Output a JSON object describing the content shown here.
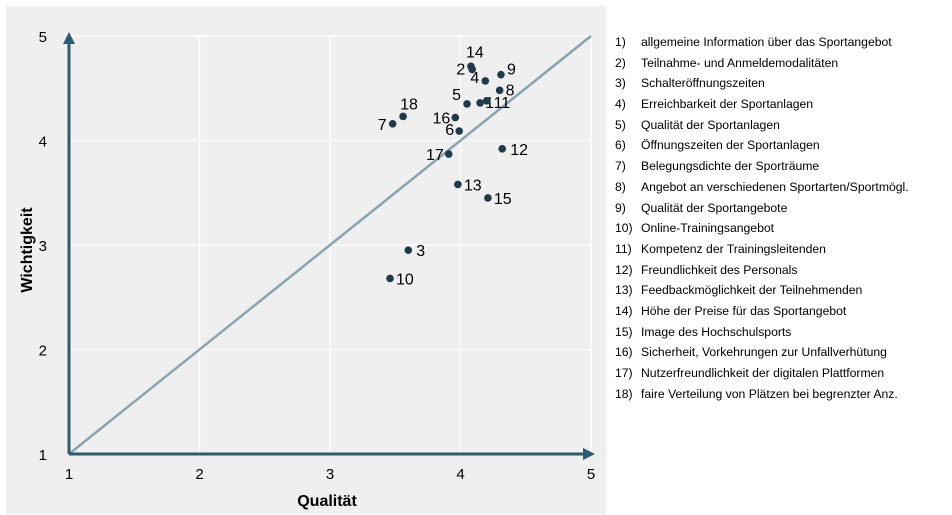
{
  "chart_data": {
    "type": "scatter",
    "xlabel": "Qualität",
    "ylabel": "Wichtigkeit",
    "xlim": [
      1,
      5
    ],
    "ylim": [
      1,
      5
    ],
    "xticks": [
      "1",
      "2",
      "3",
      "4",
      "5"
    ],
    "yticks": [
      "1",
      "2",
      "3",
      "4",
      "5"
    ],
    "grid": true,
    "diagonal_reference_line": true,
    "point_color": "#1f3a4a",
    "axis_color": "#2c5a6e",
    "diagonal_color": "#8aa3b0",
    "points": [
      {
        "label": "1",
        "x": 4.15,
        "y": 4.36
      },
      {
        "label": "2",
        "x": 4.09,
        "y": 4.68
      },
      {
        "label": "3",
        "x": 3.6,
        "y": 2.95
      },
      {
        "label": "4",
        "x": 4.19,
        "y": 4.57
      },
      {
        "label": "5",
        "x": 4.05,
        "y": 4.35
      },
      {
        "label": "6",
        "x": 3.99,
        "y": 4.09
      },
      {
        "label": "7",
        "x": 3.48,
        "y": 4.16
      },
      {
        "label": "8",
        "x": 4.3,
        "y": 4.48
      },
      {
        "label": "9",
        "x": 4.31,
        "y": 4.63
      },
      {
        "label": "10",
        "x": 3.46,
        "y": 2.68
      },
      {
        "label": "11",
        "x": 4.2,
        "y": 4.38
      },
      {
        "label": "12",
        "x": 4.32,
        "y": 3.92
      },
      {
        "label": "13",
        "x": 3.98,
        "y": 3.58
      },
      {
        "label": "14",
        "x": 4.08,
        "y": 4.71
      },
      {
        "label": "15",
        "x": 4.21,
        "y": 3.45
      },
      {
        "label": "16",
        "x": 3.96,
        "y": 4.22
      },
      {
        "label": "17",
        "x": 3.91,
        "y": 3.87
      },
      {
        "label": "18",
        "x": 3.56,
        "y": 4.23
      }
    ]
  },
  "legend": [
    {
      "num": "1)",
      "text": "allgemeine Information über das Sportangebot"
    },
    {
      "num": "2)",
      "text": "Teilnahme- und Anmeldemodalitäten"
    },
    {
      "num": "3)",
      "text": "Schalteröffnungszeiten"
    },
    {
      "num": "4)",
      "text": "Erreichbarkeit der Sportanlagen"
    },
    {
      "num": "5)",
      "text": "Qualität der Sportanlagen"
    },
    {
      "num": "6)",
      "text": "Öffnungszeiten der Sportanlagen"
    },
    {
      "num": "7)",
      "text": "Belegungsdichte der Sporträume"
    },
    {
      "num": "8)",
      "text": "Angebot an verschiedenen Sportarten/Sportmögl."
    },
    {
      "num": "9)",
      "text": "Qualität der Sportangebote"
    },
    {
      "num": "10)",
      "text": "Online-Trainingsangebot"
    },
    {
      "num": "11)",
      "text": "Kompetenz der Trainingsleitenden"
    },
    {
      "num": "12)",
      "text": "Freundlichkeit des Personals"
    },
    {
      "num": "13)",
      "text": "Feedbackmöglichkeit der Teilnehmenden"
    },
    {
      "num": "14)",
      "text": "Höhe der Preise für das Sportangebot"
    },
    {
      "num": "15)",
      "text": "Image des Hochschulsports"
    },
    {
      "num": "16)",
      "text": "Sicherheit, Vorkehrungen zur Unfallverhütung"
    },
    {
      "num": "17)",
      "text": "Nutzerfreundlichkeit der digitalen Plattformen"
    },
    {
      "num": "18)",
      "text": "faire Verteilung von Plätzen bei begrenzter Anz."
    }
  ]
}
